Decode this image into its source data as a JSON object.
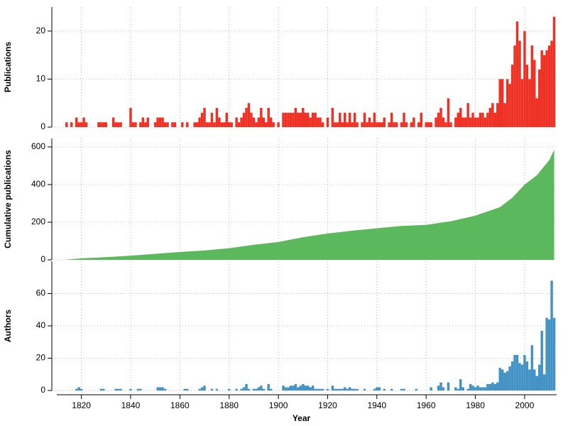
{
  "chart_data": [
    {
      "type": "bar",
      "ylabel": "Publications",
      "color": "#ee3124",
      "xlim": [
        1808,
        2013
      ],
      "xticks": [
        1820,
        1840,
        1860,
        1880,
        1900,
        1920,
        1940,
        1960,
        1980,
        2000
      ],
      "ylim": [
        0,
        25
      ],
      "yticks": [
        0,
        10,
        20
      ],
      "grid": true,
      "x": [
        1813,
        1814,
        1815,
        1816,
        1817,
        1818,
        1819,
        1820,
        1821,
        1822,
        1823,
        1824,
        1825,
        1826,
        1827,
        1828,
        1829,
        1830,
        1831,
        1832,
        1833,
        1834,
        1835,
        1836,
        1837,
        1838,
        1839,
        1840,
        1841,
        1842,
        1843,
        1844,
        1845,
        1846,
        1847,
        1848,
        1849,
        1850,
        1851,
        1852,
        1853,
        1854,
        1855,
        1856,
        1857,
        1858,
        1859,
        1860,
        1861,
        1862,
        1863,
        1864,
        1865,
        1866,
        1867,
        1868,
        1869,
        1870,
        1871,
        1872,
        1873,
        1874,
        1875,
        1876,
        1877,
        1878,
        1879,
        1880,
        1881,
        1882,
        1883,
        1884,
        1885,
        1886,
        1887,
        1888,
        1889,
        1890,
        1891,
        1892,
        1893,
        1894,
        1895,
        1896,
        1897,
        1898,
        1899,
        1900,
        1901,
        1902,
        1903,
        1904,
        1905,
        1906,
        1907,
        1908,
        1909,
        1910,
        1911,
        1912,
        1913,
        1914,
        1915,
        1916,
        1917,
        1918,
        1919,
        1920,
        1921,
        1922,
        1923,
        1924,
        1925,
        1926,
        1927,
        1928,
        1929,
        1930,
        1931,
        1932,
        1933,
        1934,
        1935,
        1936,
        1937,
        1938,
        1939,
        1940,
        1941,
        1942,
        1943,
        1944,
        1945,
        1946,
        1947,
        1948,
        1949,
        1950,
        1951,
        1952,
        1953,
        1954,
        1955,
        1956,
        1957,
        1958,
        1959,
        1960,
        1961,
        1962,
        1963,
        1964,
        1965,
        1966,
        1967,
        1968,
        1969,
        1970,
        1971,
        1972,
        1973,
        1974,
        1975,
        1976,
        1977,
        1978,
        1979,
        1980,
        1981,
        1982,
        1983,
        1984,
        1985,
        1986,
        1987,
        1988,
        1989,
        1990,
        1991,
        1992,
        1993,
        1994,
        1995,
        1996,
        1997,
        1998,
        1999,
        2000,
        2001,
        2002,
        2003,
        2004,
        2005,
        2006,
        2007,
        2008,
        2009,
        2010,
        2011,
        2012
      ],
      "values": [
        0,
        1,
        0,
        1,
        0,
        2,
        1,
        1,
        2,
        1,
        0,
        0,
        0,
        0,
        1,
        1,
        1,
        1,
        0,
        0,
        2,
        1,
        1,
        1,
        0,
        0,
        0,
        4,
        1,
        1,
        0,
        1,
        2,
        1,
        2,
        0,
        0,
        1,
        2,
        2,
        2,
        1,
        1,
        0,
        1,
        1,
        0,
        0,
        1,
        0,
        1,
        0,
        0,
        1,
        1,
        2,
        3,
        4,
        1,
        1,
        3,
        1,
        4,
        2,
        1,
        1,
        3,
        1,
        1,
        0,
        2,
        1,
        2,
        3,
        4,
        5,
        3,
        2,
        1,
        2,
        4,
        2,
        1,
        4,
        2,
        1,
        0,
        1,
        0,
        3,
        3,
        3,
        3,
        3,
        4,
        3,
        3,
        4,
        3,
        3,
        2,
        3,
        3,
        2,
        2,
        1,
        0,
        2,
        0,
        4,
        1,
        1,
        3,
        1,
        3,
        1,
        3,
        1,
        3,
        1,
        0,
        1,
        3,
        1,
        2,
        1,
        3,
        1,
        1,
        1,
        2,
        0,
        1,
        3,
        1,
        1,
        0,
        1,
        3,
        1,
        0,
        1,
        2,
        0,
        1,
        3,
        0,
        1,
        1,
        1,
        0,
        2,
        3,
        4,
        2,
        1,
        6,
        1,
        0,
        2,
        3,
        4,
        2,
        2,
        5,
        2,
        3,
        2,
        2,
        3,
        3,
        2,
        3,
        4,
        5,
        3,
        5,
        10,
        10,
        5,
        10,
        9,
        13,
        17,
        22,
        18,
        10,
        20,
        13,
        10,
        17,
        14,
        6,
        12,
        16,
        15,
        16,
        17,
        18,
        23
      ]
    },
    {
      "type": "area",
      "ylabel": "Cumulative publications",
      "color": "#5cb85c",
      "xlim": [
        1808,
        2013
      ],
      "xticks": [
        1820,
        1840,
        1860,
        1880,
        1900,
        1920,
        1940,
        1960,
        1980,
        2000
      ],
      "ylim": [
        0,
        645
      ],
      "yticks": [
        0,
        200,
        400,
        600
      ],
      "grid": true,
      "x": [
        1813,
        1820,
        1830,
        1840,
        1850,
        1860,
        1870,
        1880,
        1890,
        1900,
        1910,
        1920,
        1930,
        1940,
        1950,
        1960,
        1970,
        1980,
        1990,
        1995,
        2000,
        2005,
        2010,
        2012
      ],
      "values": [
        0,
        8,
        14,
        22,
        32,
        42,
        50,
        62,
        80,
        95,
        120,
        140,
        155,
        168,
        180,
        186,
        205,
        235,
        280,
        330,
        400,
        450,
        530,
        585
      ]
    },
    {
      "type": "bar",
      "ylabel": "Authors",
      "xlabel": "Year",
      "color": "#4292c6",
      "xlim": [
        1808,
        2013
      ],
      "xticks": [
        1820,
        1840,
        1860,
        1880,
        1900,
        1920,
        1940,
        1960,
        1980,
        2000
      ],
      "ylim": [
        0,
        80
      ],
      "yticks": [
        0,
        20,
        40,
        60
      ],
      "grid": true,
      "x": [
        1813,
        1814,
        1815,
        1816,
        1817,
        1818,
        1819,
        1820,
        1821,
        1822,
        1823,
        1824,
        1825,
        1826,
        1827,
        1828,
        1829,
        1830,
        1831,
        1832,
        1833,
        1834,
        1835,
        1836,
        1837,
        1838,
        1839,
        1840,
        1841,
        1842,
        1843,
        1844,
        1845,
        1846,
        1847,
        1848,
        1849,
        1850,
        1851,
        1852,
        1853,
        1854,
        1855,
        1856,
        1857,
        1858,
        1859,
        1860,
        1861,
        1862,
        1863,
        1864,
        1865,
        1866,
        1867,
        1868,
        1869,
        1870,
        1871,
        1872,
        1873,
        1874,
        1875,
        1876,
        1877,
        1878,
        1879,
        1880,
        1881,
        1882,
        1883,
        1884,
        1885,
        1886,
        1887,
        1888,
        1889,
        1890,
        1891,
        1892,
        1893,
        1894,
        1895,
        1896,
        1897,
        1898,
        1899,
        1900,
        1901,
        1902,
        1903,
        1904,
        1905,
        1906,
        1907,
        1908,
        1909,
        1910,
        1911,
        1912,
        1913,
        1914,
        1915,
        1916,
        1917,
        1918,
        1919,
        1920,
        1921,
        1922,
        1923,
        1924,
        1925,
        1926,
        1927,
        1928,
        1929,
        1930,
        1931,
        1932,
        1933,
        1934,
        1935,
        1936,
        1937,
        1938,
        1939,
        1940,
        1941,
        1942,
        1943,
        1944,
        1945,
        1946,
        1947,
        1948,
        1949,
        1950,
        1951,
        1952,
        1953,
        1954,
        1955,
        1956,
        1957,
        1958,
        1959,
        1960,
        1961,
        1962,
        1963,
        1964,
        1965,
        1966,
        1967,
        1968,
        1969,
        1970,
        1971,
        1972,
        1973,
        1974,
        1975,
        1976,
        1977,
        1978,
        1979,
        1980,
        1981,
        1982,
        1983,
        1984,
        1985,
        1986,
        1987,
        1988,
        1989,
        1990,
        1991,
        1992,
        1993,
        1994,
        1995,
        1996,
        1997,
        1998,
        1999,
        2000,
        2001,
        2002,
        2003,
        2004,
        2005,
        2006,
        2007,
        2008,
        2009,
        2010,
        2011,
        2012
      ],
      "values": [
        0,
        0,
        0,
        0,
        0,
        1,
        2,
        1,
        0,
        0,
        0,
        0,
        0,
        0,
        0,
        1,
        1,
        0,
        0,
        0,
        0,
        1,
        1,
        1,
        0,
        0,
        0,
        1,
        0,
        0,
        1,
        1,
        0,
        0,
        0,
        0,
        0,
        0,
        2,
        2,
        2,
        1,
        0,
        0,
        0,
        0,
        0,
        0,
        0,
        1,
        1,
        0,
        0,
        0,
        0,
        1,
        2,
        3,
        0,
        0,
        1,
        0,
        1,
        0,
        0,
        0,
        0,
        1,
        0,
        0,
        1,
        0,
        1,
        2,
        4,
        1,
        0,
        1,
        1,
        2,
        3,
        1,
        0,
        4,
        1,
        0,
        0,
        0,
        0,
        3,
        2,
        2,
        3,
        3,
        4,
        2,
        3,
        4,
        3,
        3,
        2,
        3,
        1,
        1,
        1,
        1,
        0,
        1,
        0,
        3,
        1,
        1,
        1,
        1,
        2,
        1,
        2,
        1,
        1,
        1,
        0,
        0,
        1,
        0,
        0,
        0,
        1,
        2,
        2,
        0,
        1,
        0,
        0,
        1,
        0,
        0,
        0,
        1,
        1,
        0,
        0,
        0,
        0,
        1,
        0,
        0,
        0,
        0,
        0,
        2,
        0,
        0,
        3,
        5,
        2,
        0,
        5,
        0,
        0,
        2,
        1,
        7,
        2,
        0,
        1,
        4,
        3,
        2,
        3,
        2,
        2,
        2,
        4,
        4,
        5,
        4,
        5,
        14,
        13,
        11,
        12,
        15,
        18,
        22,
        22,
        17,
        16,
        22,
        18,
        13,
        28,
        13,
        9,
        16,
        37,
        10,
        45,
        44,
        68,
        45
      ]
    }
  ]
}
